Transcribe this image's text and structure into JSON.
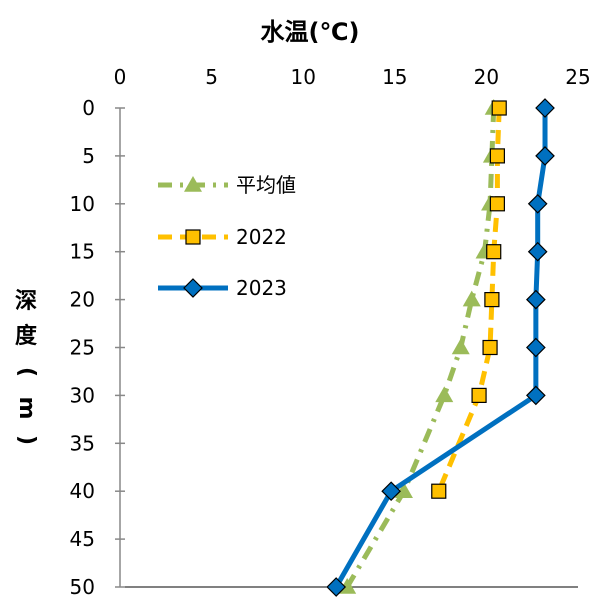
{
  "chart_data": {
    "type": "line",
    "title": "水温(℃)",
    "xlabel": "水温(℃)",
    "ylabel": "深度(m)",
    "ylabel_chars": [
      "深",
      "度",
      "(",
      "m",
      ")"
    ],
    "x_axis_position": "top",
    "y_axis_inverted": true,
    "xlim": [
      0,
      25
    ],
    "ylim": [
      0,
      50
    ],
    "x_ticks": [
      "0",
      "5",
      "10",
      "15",
      "20",
      "25"
    ],
    "y_ticks": [
      "0",
      "5",
      "10",
      "15",
      "20",
      "25",
      "30",
      "35",
      "40",
      "45",
      "50"
    ],
    "grid": false,
    "legend_position": "left",
    "series": [
      {
        "name": "平均値",
        "color": "#9BBB59",
        "marker": "triangle",
        "line_style": "dash-dot",
        "points": [
          {
            "x": 20.4,
            "y": 0
          },
          {
            "x": 20.3,
            "y": 5
          },
          {
            "x": 20.2,
            "y": 10
          },
          {
            "x": 19.9,
            "y": 15
          },
          {
            "x": 19.2,
            "y": 20
          },
          {
            "x": 18.6,
            "y": 25
          },
          {
            "x": 17.7,
            "y": 30
          },
          {
            "x": 15.5,
            "y": 40
          },
          {
            "x": 12.4,
            "y": 50
          }
        ]
      },
      {
        "name": "2022",
        "color": "#FFC000",
        "marker": "square",
        "line_style": "dash",
        "points": [
          {
            "x": 20.7,
            "y": 0
          },
          {
            "x": 20.6,
            "y": 5
          },
          {
            "x": 20.6,
            "y": 10
          },
          {
            "x": 20.4,
            "y": 15
          },
          {
            "x": 20.3,
            "y": 20
          },
          {
            "x": 20.2,
            "y": 25
          },
          {
            "x": 19.6,
            "y": 30
          },
          {
            "x": 17.4,
            "y": 40
          }
        ]
      },
      {
        "name": "2023",
        "color": "#0070C0",
        "marker": "diamond",
        "line_style": "solid",
        "points": [
          {
            "x": 23.2,
            "y": 0
          },
          {
            "x": 23.2,
            "y": 5
          },
          {
            "x": 22.8,
            "y": 10
          },
          {
            "x": 22.8,
            "y": 15
          },
          {
            "x": 22.7,
            "y": 20
          },
          {
            "x": 22.7,
            "y": 25
          },
          {
            "x": 22.7,
            "y": 30
          },
          {
            "x": 14.8,
            "y": 40
          },
          {
            "x": 11.8,
            "y": 50
          }
        ]
      }
    ]
  }
}
